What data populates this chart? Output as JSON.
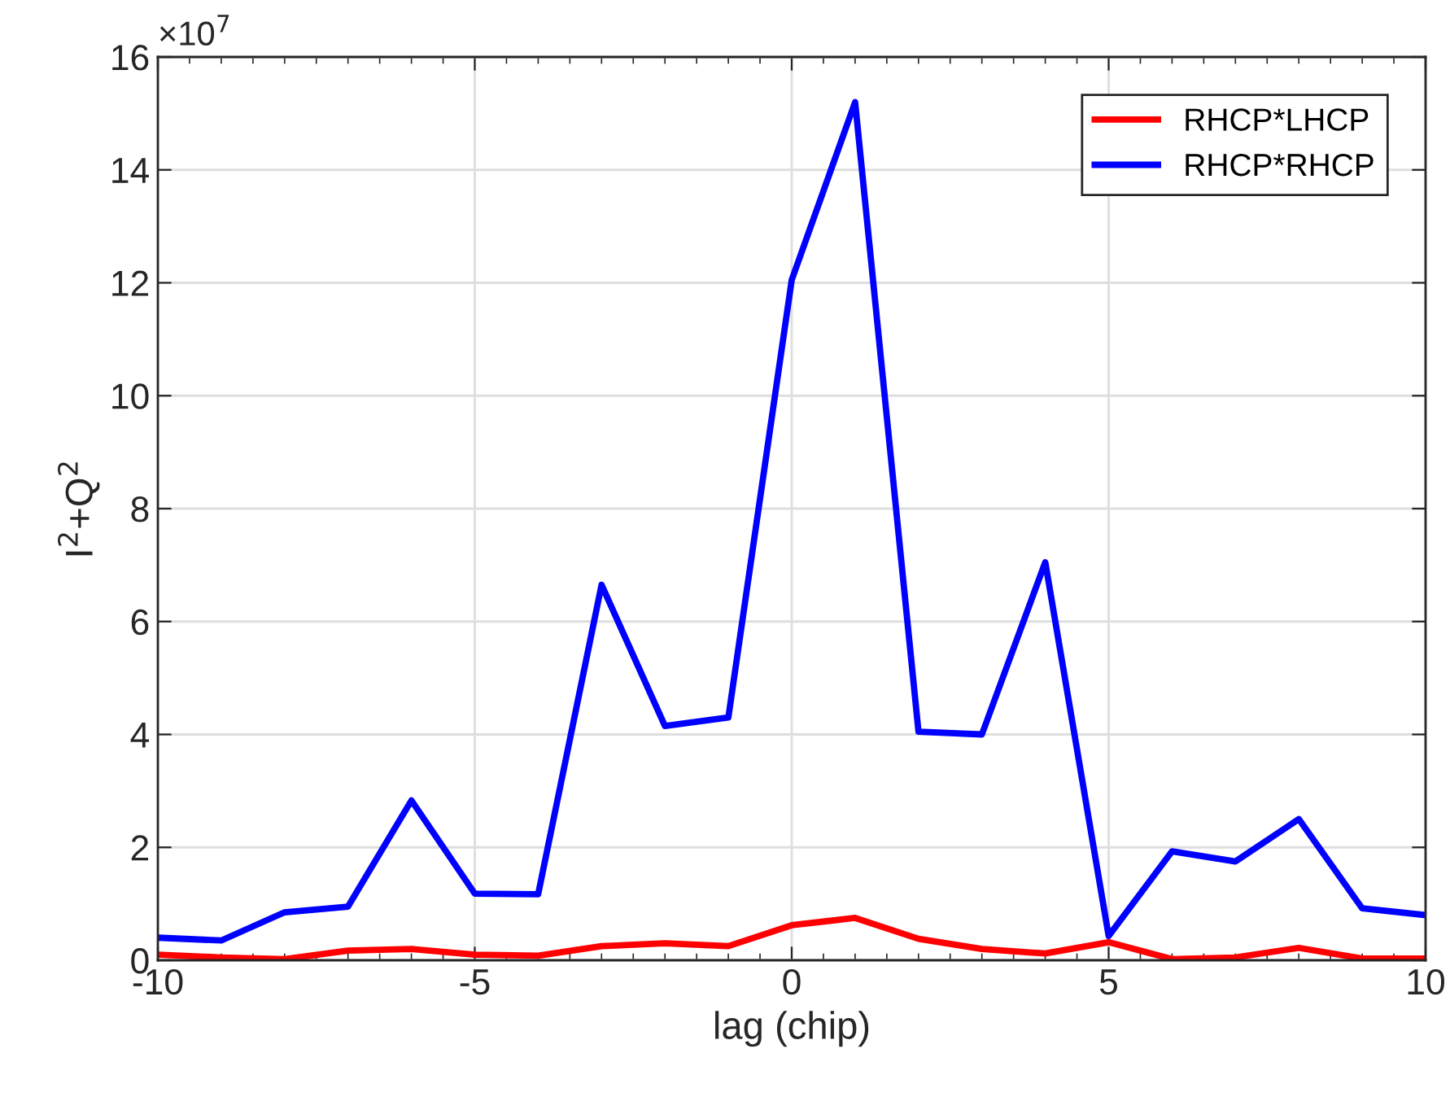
{
  "chart_data": {
    "type": "line",
    "xlabel": "lag (chip)",
    "ylabel": "I$^{2}$+Q$^{2}$",
    "annotations": [
      "×10$^{7}$"
    ],
    "x": [
      -10,
      -9,
      -8,
      -7,
      -6,
      -5,
      -4,
      -3,
      -2,
      -1,
      0,
      1,
      2,
      3,
      4,
      5,
      6,
      7,
      8,
      9,
      10
    ],
    "series": [
      {
        "name": "RHCP*LHCP",
        "color": "#ff0000",
        "values": [
          0.1,
          0.05,
          0.02,
          0.17,
          0.2,
          0.1,
          0.08,
          0.25,
          0.3,
          0.25,
          0.62,
          0.75,
          0.38,
          0.2,
          0.12,
          0.32,
          0.02,
          0.05,
          0.22,
          0.03,
          0.03
        ]
      },
      {
        "name": "RHCP*RHCP",
        "color": "#0000ff",
        "values": [
          0.4,
          0.35,
          0.85,
          0.95,
          2.83,
          1.18,
          1.17,
          6.65,
          4.15,
          4.3,
          12.05,
          15.2,
          4.05,
          4.0,
          7.05,
          0.43,
          1.93,
          1.75,
          2.5,
          0.92,
          0.8
        ]
      }
    ],
    "xlim": [
      -10,
      10
    ],
    "xticks": [
      -10,
      -5,
      0,
      5,
      10
    ],
    "ylim": [
      0,
      16
    ],
    "yticks": [
      0,
      2,
      4,
      6,
      8,
      10,
      12,
      14,
      16
    ],
    "grid": true,
    "legend": "top right",
    "marker": "none",
    "line_style": "solid"
  }
}
